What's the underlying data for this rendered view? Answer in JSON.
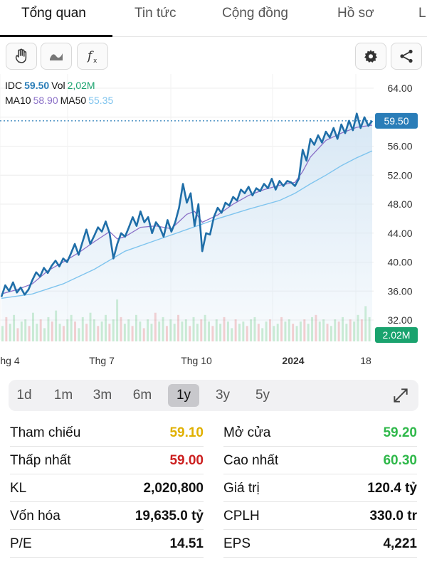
{
  "tabs": [
    "Tổng quan",
    "Tin tức",
    "Cộng đồng",
    "Hồ sơ",
    "L"
  ],
  "toolbar": {
    "icons": [
      "hand-icon",
      "line-style-icon",
      "function-icon",
      "gear-icon",
      "share-icon"
    ]
  },
  "legend": {
    "symbol": "IDC",
    "price": "59.50",
    "vol_label": "Vol",
    "vol": "2,02M",
    "ma10_label": "MA10",
    "ma10": "58.90",
    "ma50_label": "MA50",
    "ma50": "55.35"
  },
  "colors": {
    "price_line": "#1f6ea8",
    "ma10": "#8a6fc7",
    "ma50": "#7fc4ee",
    "area_fill": "#d5e6f4",
    "up": "#2fb84a",
    "down": "#e23b3b",
    "yellow": "#e0b000",
    "last_price_badge": "#2a7db8",
    "volume_badge": "#1aa36e"
  },
  "chart_data": {
    "type": "line",
    "y_ticks": [
      "64.00",
      "60.00",
      "56.00",
      "52.00",
      "48.00",
      "44.00",
      "40.00",
      "36.00",
      "32.00"
    ],
    "x_ticks": [
      "hg 4",
      "Thg 7",
      "Thg 10",
      "2024",
      "18"
    ],
    "ylim": [
      32,
      64
    ],
    "last_price_label": "59.50",
    "last_volume_label": "2.02M",
    "grid": true,
    "series": [
      {
        "name": "IDC",
        "x": [
          0,
          3,
          6,
          9,
          12,
          15,
          18,
          21,
          24,
          27,
          30,
          33,
          36,
          39,
          42,
          45,
          48,
          51,
          54,
          57,
          60,
          63,
          66,
          69,
          72,
          75,
          78,
          81,
          84,
          87,
          90,
          93,
          96,
          99,
          102,
          105,
          108,
          111,
          114,
          117,
          120,
          123,
          126,
          129,
          132,
          135,
          138,
          141,
          144,
          147,
          150,
          153,
          156,
          159,
          162,
          165,
          168,
          171,
          174,
          177,
          180,
          183,
          186,
          189,
          192,
          195,
          198,
          201,
          204,
          207,
          210,
          213,
          216,
          219,
          222,
          225,
          228,
          231,
          234,
          237,
          240,
          243,
          246,
          249,
          252,
          255,
          258,
          261,
          264,
          267,
          270,
          273,
          276,
          279,
          282,
          285,
          288
        ],
        "values": [
          35.2,
          36.8,
          36.0,
          37.2,
          35.8,
          36.5,
          35.5,
          36.2,
          37.5,
          38.6,
          38.0,
          39.2,
          38.5,
          39.5,
          40.2,
          39.4,
          40.5,
          40.0,
          41.2,
          42.5,
          41.0,
          42.8,
          44.5,
          42.5,
          43.6,
          44.8,
          44.2,
          45.6,
          44.0,
          40.5,
          42.5,
          44.0,
          43.5,
          44.8,
          46.2,
          45.0,
          47.0,
          45.5,
          46.2,
          44.0,
          45.5,
          44.8,
          43.5,
          45.8,
          44.2,
          45.5,
          47.5,
          50.8,
          48.2,
          49.5,
          45.0,
          48.0,
          41.5,
          44.0,
          43.8,
          46.2,
          47.5,
          46.8,
          48.2,
          47.8,
          49.0,
          48.5,
          50.0,
          49.5,
          50.4,
          49.2,
          50.2,
          49.8,
          50.8,
          50.2,
          51.5,
          50.0,
          51.2,
          50.5,
          51.2,
          51.0,
          50.5,
          51.5,
          55.5,
          54.0,
          57.0,
          56.2,
          57.5,
          56.5,
          58.0,
          57.2,
          58.5,
          57.0,
          59.0,
          57.8,
          59.5,
          58.2,
          60.5,
          58.5,
          60.0,
          58.8,
          59.5
        ]
      },
      {
        "name": "MA10",
        "x": [
          0,
          12,
          24,
          36,
          48,
          60,
          72,
          84,
          90,
          96,
          108,
          120,
          132,
          144,
          150,
          156,
          168,
          180,
          192,
          204,
          216,
          228,
          234,
          240,
          252,
          264,
          276,
          288
        ],
        "values": [
          35.6,
          36.2,
          37.0,
          38.8,
          40.0,
          41.3,
          42.8,
          44.2,
          43.2,
          43.5,
          44.8,
          45.0,
          44.6,
          46.6,
          47.0,
          45.5,
          46.5,
          48.0,
          49.2,
          50.0,
          50.6,
          51.0,
          52.5,
          54.5,
          56.8,
          57.8,
          58.6,
          58.9
        ]
      },
      {
        "name": "MA50",
        "x": [
          0,
          24,
          48,
          72,
          96,
          120,
          144,
          168,
          192,
          216,
          228,
          240,
          252,
          264,
          276,
          288
        ],
        "values": [
          35.0,
          35.6,
          37.0,
          39.0,
          41.5,
          43.0,
          44.5,
          46.0,
          47.3,
          48.5,
          49.5,
          50.8,
          52.0,
          53.3,
          54.4,
          55.35
        ]
      }
    ],
    "volume_bars": [
      0.35,
      0.55,
      0.4,
      0.6,
      0.3,
      0.45,
      0.5,
      0.35,
      0.65,
      0.4,
      0.5,
      0.3,
      0.55,
      0.45,
      0.7,
      0.4,
      0.35,
      0.5,
      0.6,
      0.45,
      0.3,
      0.55,
      0.4,
      0.65,
      0.5,
      0.35,
      0.45,
      0.6,
      0.4,
      0.5,
      0.95,
      0.55,
      0.4,
      0.5,
      0.35,
      0.6,
      0.45,
      0.3,
      0.5,
      0.4,
      0.65,
      0.45,
      0.55,
      0.35,
      0.5,
      0.4,
      0.6,
      0.45,
      0.5,
      0.35,
      0.55,
      0.4,
      0.5,
      0.6,
      0.45,
      0.35,
      0.5,
      0.4,
      0.55,
      0.45,
      0.3,
      0.5,
      0.4,
      0.45,
      0.35,
      0.5,
      0.55,
      0.4,
      0.3,
      0.45,
      0.5,
      0.35,
      0.4,
      0.55,
      0.45,
      0.5,
      0.4,
      0.35,
      0.45,
      0.5,
      0.4,
      0.55,
      0.6,
      0.45,
      0.5,
      0.4,
      0.35,
      0.5,
      0.45,
      0.55,
      0.4,
      0.5,
      0.45,
      0.6,
      0.5,
      0.8,
      0.55
    ]
  },
  "periods": [
    "1d",
    "1m",
    "3m",
    "6m",
    "1y",
    "3y",
    "5y"
  ],
  "active_period": "1y",
  "stats": {
    "left": [
      {
        "label": "Tham chiếu",
        "value": "59.10",
        "color": "#e0b000"
      },
      {
        "label": "Thấp nhất",
        "value": "59.00",
        "color": "#cc2020"
      },
      {
        "label": "KL",
        "value": "2,020,800",
        "color": "#111111"
      },
      {
        "label": "Vốn hóa",
        "value": "19,635.0 tỷ",
        "color": "#111111"
      },
      {
        "label": "P/E",
        "value": "14.51",
        "color": "#111111"
      }
    ],
    "right": [
      {
        "label": "Mở cửa",
        "value": "59.20",
        "color": "#2fb84a"
      },
      {
        "label": "Cao nhất",
        "value": "60.30",
        "color": "#2fb84a"
      },
      {
        "label": "Giá trị",
        "value": "120.4 tỷ",
        "color": "#111111"
      },
      {
        "label": "CPLH",
        "value": "330.0 tr",
        "color": "#111111"
      },
      {
        "label": "EPS",
        "value": "4,221",
        "color": "#111111"
      }
    ]
  }
}
